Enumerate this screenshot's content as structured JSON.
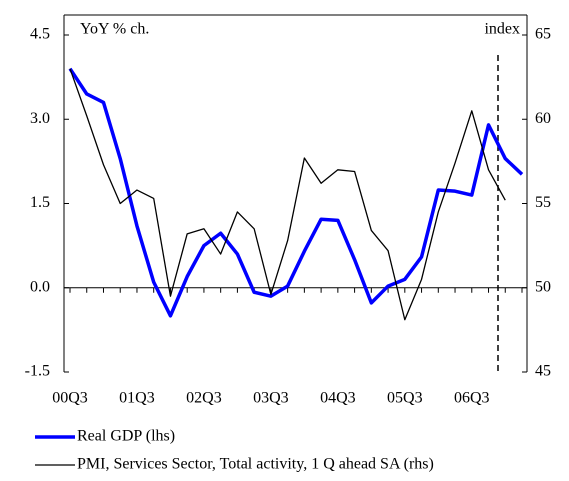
{
  "chart_data": {
    "type": "line",
    "y_label": "YoY % ch.",
    "y2_label": "index",
    "categories": [
      "00Q3",
      null,
      null,
      null,
      "01Q3",
      null,
      null,
      null,
      "02Q3",
      null,
      null,
      null,
      "03Q3",
      null,
      null,
      null,
      "04Q3",
      null,
      null,
      null,
      "05Q3",
      null,
      null,
      null,
      "06Q3",
      null,
      null,
      null
    ],
    "series": [
      {
        "name": "Real GDP (lhs)",
        "color": "#0000ff",
        "axis": "y",
        "values": [
          3.9,
          3.45,
          3.3,
          2.3,
          1.1,
          0.1,
          -0.5,
          0.2,
          0.75,
          0.97,
          0.6,
          -0.08,
          -0.15,
          0.03,
          0.65,
          1.22,
          1.2,
          0.5,
          -0.27,
          0.03,
          0.15,
          0.55,
          1.74,
          1.72,
          1.65,
          2.9,
          2.3,
          2.02
        ]
      },
      {
        "name": "PMI, Services Sector, Total activity, 1 Q ahead SA (rhs)",
        "color": "#000000",
        "axis": "y2",
        "values": [
          63,
          60.2,
          57.3,
          55,
          55.8,
          55.3,
          49.5,
          53.2,
          53.5,
          52,
          54.5,
          53.5,
          49.6,
          52.8,
          57.7,
          56.2,
          57,
          56.9,
          53.4,
          52.2,
          48.1,
          50.5,
          54.5,
          57.4,
          60.5,
          57,
          55.2,
          null
        ]
      }
    ],
    "ylim": [
      -1.5,
      4.5
    ],
    "yticks": [
      -1.5,
      {
        "value": 0,
        "label": "0.0"
      },
      1.5,
      {
        "value": 3,
        "label": "3.0"
      },
      4.5
    ],
    "y2lim": [
      45,
      65
    ],
    "y2ticks": [
      45,
      50,
      55,
      60,
      65
    ]
  }
}
